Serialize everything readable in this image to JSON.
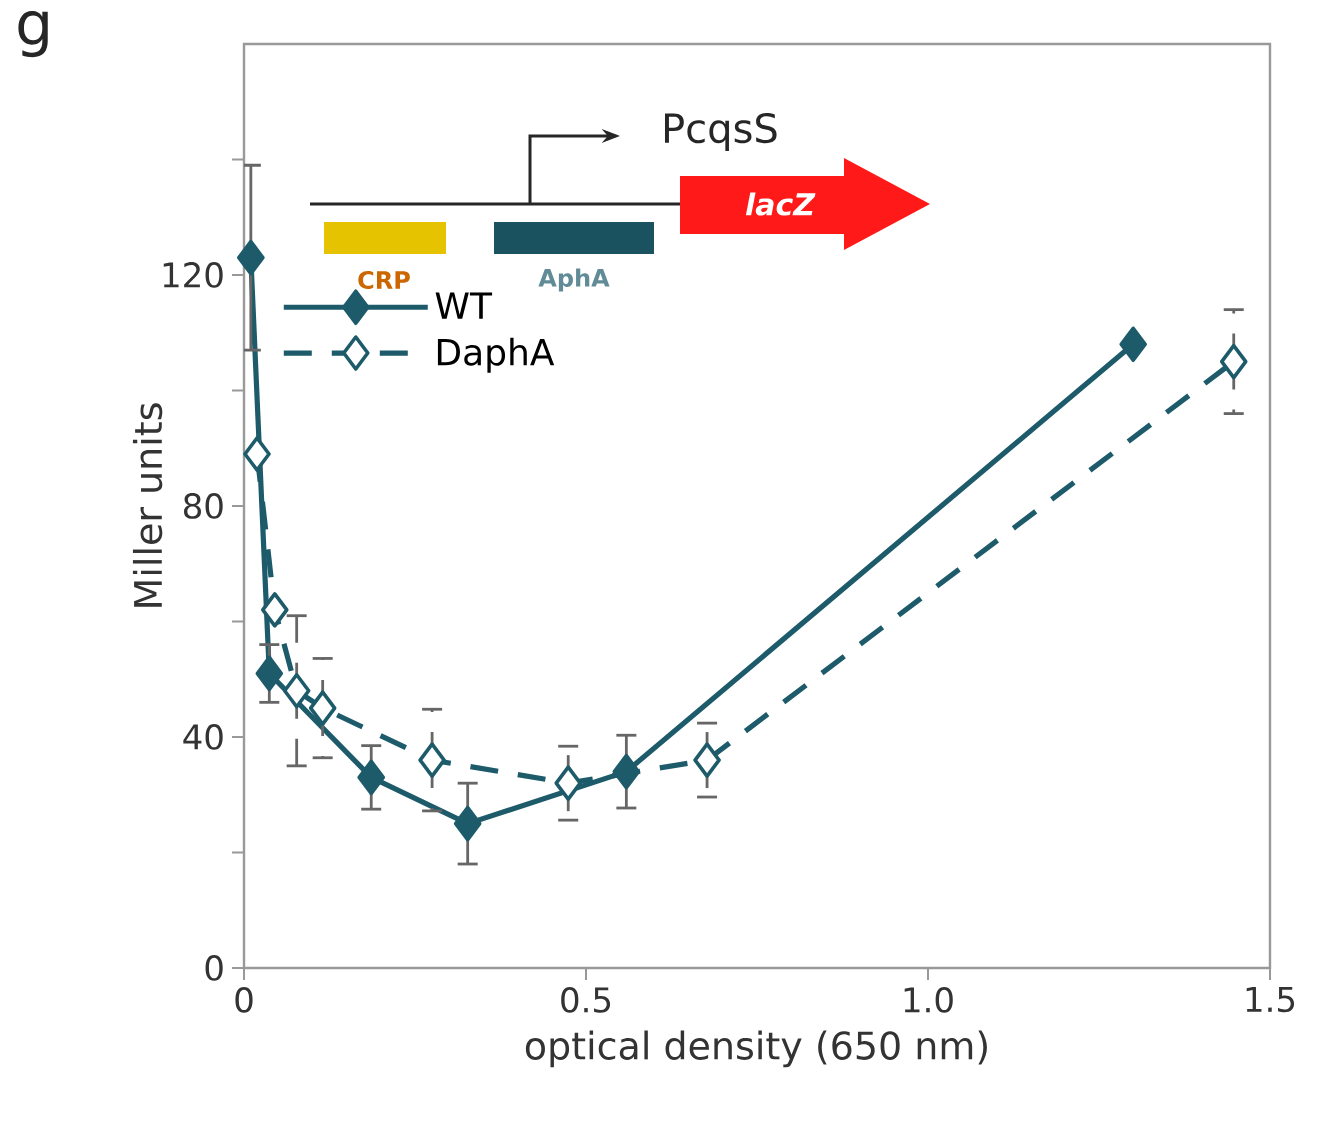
{
  "chart_data": {
    "type": "line",
    "xlabel": "optical density (650 nm)",
    "ylabel": "Miller units",
    "xlim": [
      0,
      1.5
    ],
    "xticks": [
      0,
      {
        "value": 0.5,
        "label": "0.5"
      },
      {
        "value": 1,
        "label": "1.0"
      },
      {
        "value": 1.5,
        "label": "1.5"
      }
    ],
    "ylim": [
      0,
      160
    ],
    "yticks": [
      0,
      {
        "value": 20,
        "label": null
      },
      40,
      {
        "value": 60,
        "label": null
      },
      80,
      {
        "value": 100,
        "label": null
      },
      120,
      {
        "value": 140,
        "label": null
      }
    ],
    "legend": "top left",
    "marker": "diamond",
    "series": [
      {
        "name": "WT",
        "color": "#1d5b6b",
        "line_style": "solid",
        "x": [
          0.01,
          0.037,
          0.186,
          0.327,
          0.559,
          1.3
        ],
        "values": [
          123,
          51,
          33,
          25,
          34,
          108
        ],
        "errors": [
          16,
          5,
          5.5,
          7,
          6.3,
          null
        ]
      },
      {
        "name": "DaphA",
        "color": "#1d5b6b",
        "line_style": "dashed",
        "x": [
          0.019,
          0.045,
          0.077,
          0.115,
          0.275,
          0.474,
          0.677,
          1.447
        ],
        "values": [
          89,
          62,
          48,
          45,
          36,
          32,
          36,
          105
        ],
        "errors": [
          null,
          null,
          13,
          8.6,
          8.8,
          6.4,
          6.4,
          9
        ]
      }
    ],
    "annotations": [
      "g",
      "PcqsS",
      "lacZ",
      "CRP",
      "AphA"
    ]
  }
}
